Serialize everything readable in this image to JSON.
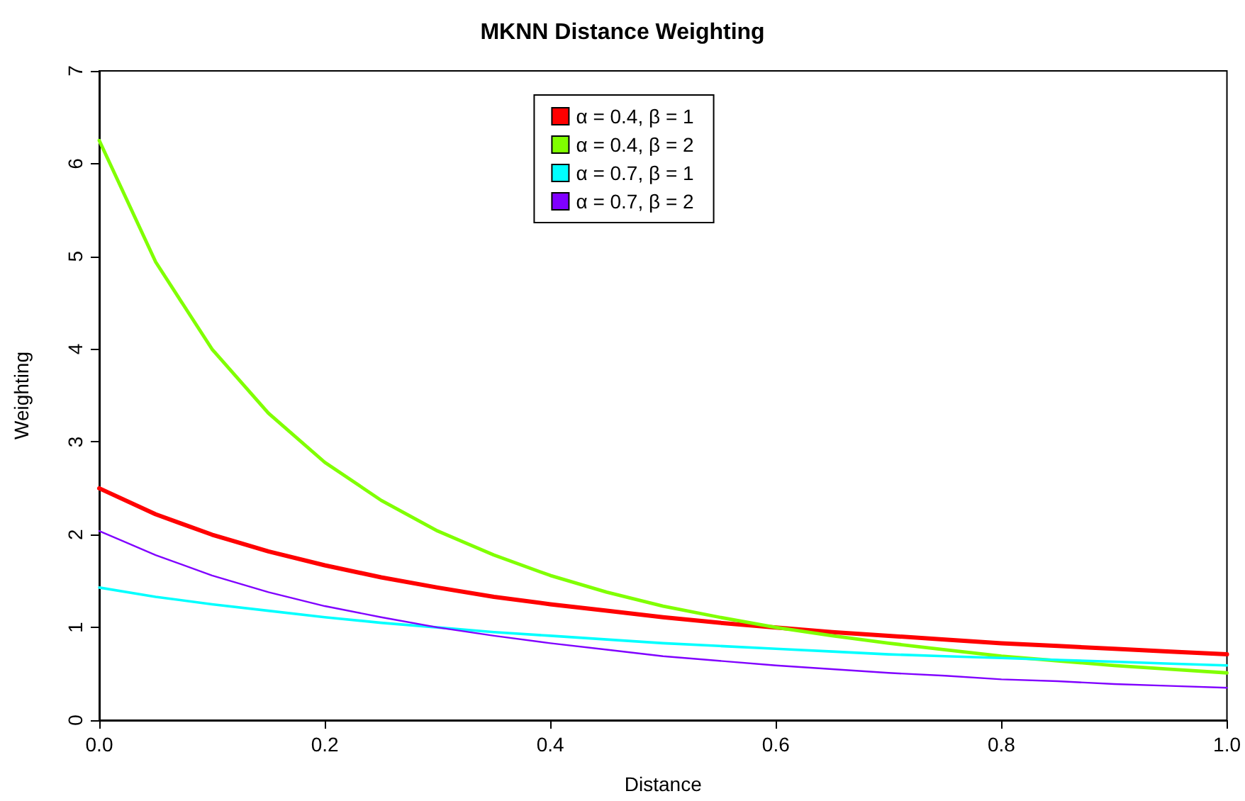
{
  "chart_data": {
    "type": "line",
    "title": "MKNN Distance Weighting",
    "xlabel": "Distance",
    "ylabel": "Weighting",
    "x": [
      0,
      0.05,
      0.1,
      0.15,
      0.2,
      0.25,
      0.3,
      0.35,
      0.4,
      0.45,
      0.5,
      0.55,
      0.6,
      0.65,
      0.7,
      0.75,
      0.8,
      0.85,
      0.9,
      0.95,
      1
    ],
    "series": [
      {
        "name": "α = 0.4, β = 1",
        "color": "#ff0000",
        "values": [
          2.5,
          2.22,
          2.0,
          1.82,
          1.67,
          1.54,
          1.43,
          1.33,
          1.25,
          1.18,
          1.11,
          1.05,
          1.0,
          0.95,
          0.91,
          0.87,
          0.83,
          0.8,
          0.77,
          0.74,
          0.71
        ]
      },
      {
        "name": "α = 0.4, β = 2",
        "color": "#80ff00",
        "values": [
          6.25,
          4.94,
          4.0,
          3.31,
          2.78,
          2.37,
          2.04,
          1.78,
          1.56,
          1.38,
          1.23,
          1.11,
          1.0,
          0.91,
          0.83,
          0.76,
          0.69,
          0.64,
          0.59,
          0.55,
          0.51
        ]
      },
      {
        "name": "α = 0.7, β = 1",
        "color": "#00ffff",
        "values": [
          1.43,
          1.33,
          1.25,
          1.18,
          1.11,
          1.05,
          1.0,
          0.95,
          0.91,
          0.87,
          0.83,
          0.8,
          0.77,
          0.74,
          0.71,
          0.69,
          0.67,
          0.65,
          0.63,
          0.61,
          0.59
        ]
      },
      {
        "name": "α = 0.7, β = 2",
        "color": "#8000ff",
        "values": [
          2.04,
          1.78,
          1.56,
          1.38,
          1.23,
          1.11,
          1.0,
          0.91,
          0.83,
          0.76,
          0.69,
          0.64,
          0.59,
          0.55,
          0.51,
          0.48,
          0.44,
          0.42,
          0.39,
          0.37,
          0.35
        ]
      }
    ],
    "xlim": [
      0,
      1
    ],
    "xticks": [
      {
        "value": 0,
        "label": "0.0"
      },
      0.2,
      0.4,
      0.6,
      0.8,
      {
        "value": 1,
        "label": "1.0"
      }
    ],
    "ylim": [
      0,
      7
    ],
    "yticks": [
      0,
      1,
      2,
      3,
      4,
      5,
      6,
      7
    ],
    "grid": false,
    "legend": "top",
    "marker": "none",
    "line_style": "solid"
  }
}
